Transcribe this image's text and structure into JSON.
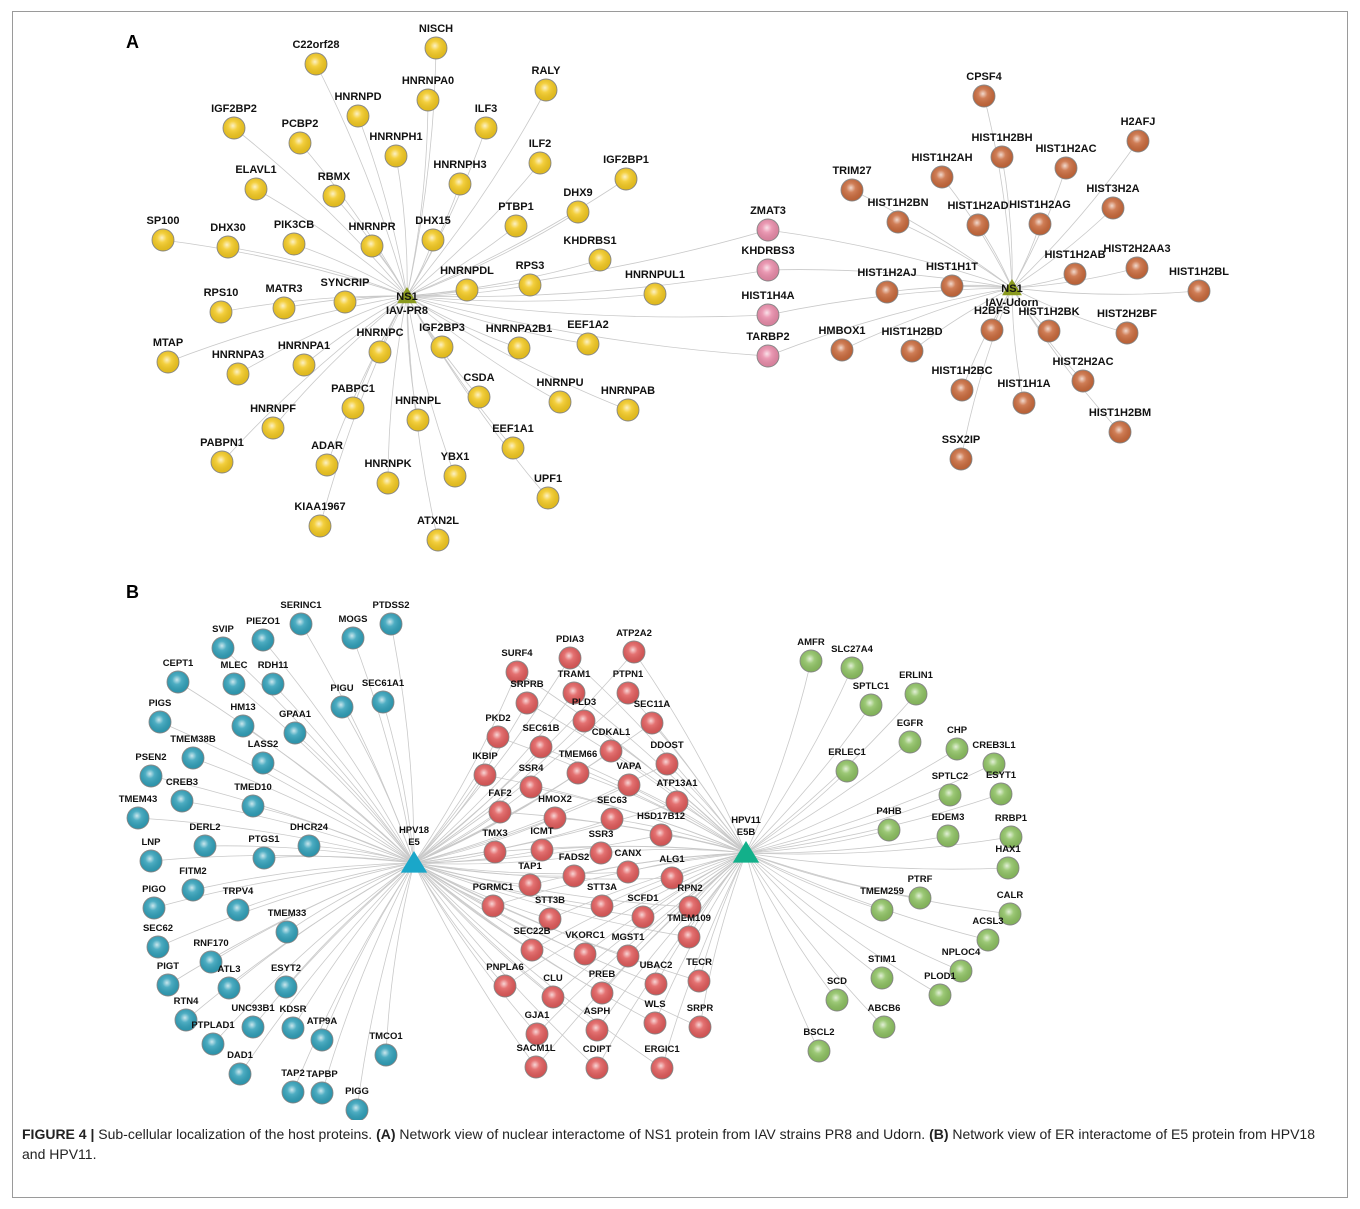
{
  "panels": [
    {
      "id": "A",
      "label": "A"
    },
    {
      "id": "B",
      "label": "B"
    }
  ],
  "colors": {
    "yellow": "#f2c81e",
    "pink": "#e88aa8",
    "brown": "#c8683a",
    "olive_hub": "#8a9a1e",
    "teal": "#2f9fb8",
    "red": "#e05a5a",
    "green": "#8cc060",
    "cyan_hub": "#1aa7c9",
    "teal_hub": "#12b08a",
    "edge": "#c9c9c9"
  },
  "panel_a": {
    "hubs": [
      {
        "id": "h_pr8",
        "lines": [
          "NS1",
          "IAV-PR8"
        ],
        "color": "olive_hub"
      },
      {
        "id": "h_udorn",
        "lines": [
          "NS1",
          "IAV-Udorn"
        ],
        "color": "olive_hub"
      }
    ],
    "groups": [
      {
        "color": "yellow",
        "hub": "h_pr8",
        "nodes": [
          "NISCH",
          "C22orf28",
          "RALY",
          "HNRNPA0",
          "HNRNPD",
          "IGF2BP2",
          "PCBP2",
          "ILF3",
          "HNRNPH1",
          "ILF2",
          "IGF2BP1",
          "ELAVL1",
          "RBMX",
          "HNRNPH3",
          "DHX9",
          "PTBP1",
          "SP100",
          "DHX30",
          "PIK3CB",
          "HNRNPR",
          "DHX15",
          "KHDRBS1",
          "RPS10",
          "MATR3",
          "SYNCRIP",
          "HNRNPDL",
          "RPS3",
          "HNRNPUL1",
          "MTAP",
          "HNRNPA3",
          "HNRNPA1",
          "HNRNPC",
          "IGF2BP3",
          "HNRNPA2B1",
          "EEF1A2",
          "HNRNPF",
          "PABPC1",
          "HNRNPL",
          "CSDA",
          "HNRNPU",
          "HNRNPAB",
          "PABPN1",
          "ADAR",
          "HNRNPK",
          "YBX1",
          "EEF1A1",
          "UPF1",
          "KIAA1967",
          "ATXN2L"
        ]
      },
      {
        "color": "pink",
        "hub": "both",
        "nodes": [
          "ZMAT3",
          "KHDRBS3",
          "HIST1H4A",
          "TARBP2"
        ]
      },
      {
        "color": "brown",
        "hub": "h_udorn",
        "nodes": [
          "CPSF4",
          "H2AFJ",
          "HIST1H2BH",
          "HIST1H2AC",
          "HIST1H2AH",
          "TRIM27",
          "HIST3H2A",
          "HIST1H2BN",
          "HIST1H2AD",
          "HIST1H2AG",
          "HIST2H2AA3",
          "HIST1H2AJ",
          "HIST1H1T",
          "HIST1H2AB",
          "HIST1H2BL",
          "H2BFS",
          "HIST1H2BK",
          "HIST2H2BF",
          "HMBOX1",
          "HIST1H2BD",
          "HIST2H2AC",
          "HIST1H2BC",
          "HIST1H1A",
          "HIST1H2BM",
          "SSX2IP"
        ]
      }
    ]
  },
  "panel_b": {
    "hubs": [
      {
        "id": "h_hpv18",
        "lines": [
          "HPV18",
          "E5"
        ],
        "color": "cyan_hub"
      },
      {
        "id": "h_hpv11",
        "lines": [
          "HPV11",
          "E5B"
        ],
        "color": "teal_hub"
      }
    ],
    "groups": [
      {
        "color": "teal",
        "hub": "h_hpv18",
        "nodes": [
          "SERINC1",
          "PTDSS2",
          "SVIP",
          "PIEZO1",
          "MOGS",
          "CEPT1",
          "MLEC",
          "RDH11",
          "SEC61A1",
          "PIGU",
          "PIGS",
          "HM13",
          "GPAA1",
          "PSEN2",
          "TMEM38B",
          "LASS2",
          "CREB3",
          "TMEM43",
          "TMED10",
          "DHCR24",
          "LNP",
          "DERL2",
          "PTGS1",
          "FITM2",
          "PIGO",
          "TRPV4",
          "TMEM33",
          "SEC62",
          "RNF170",
          "PIGT",
          "ATL3",
          "ESYT2",
          "RTN4",
          "UNC93B1",
          "KDSR",
          "ATP9A",
          "PTPLAD1",
          "TMCO1",
          "DAD1",
          "TAP2",
          "TAPBP",
          "PIGG"
        ]
      },
      {
        "color": "red",
        "hub": "both",
        "nodes": [
          "PDIA3",
          "ATP2A2",
          "SURF4",
          "TRAM1",
          "PTPN1",
          "SRPRB",
          "PLD3",
          "SEC11A",
          "PKD2",
          "SEC61B",
          "CDKAL1",
          "TMEM66",
          "DDOST",
          "IKBIP",
          "SSR4",
          "VAPA",
          "FAF2",
          "HMOX2",
          "SEC63",
          "ATP13A1",
          "TMX3",
          "ICMT",
          "SSR3",
          "HSD17B12",
          "TAP1",
          "FADS2",
          "CANX",
          "ALG1",
          "PGRMC1",
          "STT3A",
          "STT3B",
          "SCFD1",
          "RPN2",
          "SEC22B",
          "VKORC1",
          "MGST1",
          "TMEM109",
          "PNPLA6",
          "CLU",
          "PREB",
          "UBAC2",
          "TECR",
          "GJA1",
          "ASPH",
          "WLS",
          "SRPR",
          "SACM1L",
          "CDIPT",
          "ERGIC1"
        ]
      },
      {
        "color": "green",
        "hub": "h_hpv11",
        "nodes": [
          "AMFR",
          "SLC27A4",
          "SPTLC1",
          "ERLIN1",
          "EGFR",
          "CHP",
          "CREB3L1",
          "ERLEC1",
          "SPTLC2",
          "ESYT1",
          "P4HB",
          "EDEM3",
          "RRBP1",
          "HAX1",
          "TMEM259",
          "PTRF",
          "CALR",
          "ACSL3",
          "NPLOC4",
          "STIM1",
          "SCD",
          "PLOD1",
          "ABCB6",
          "BSCL2"
        ]
      }
    ]
  },
  "caption": {
    "lead": "FIGURE 4 |",
    "text1": " Sub-cellular localization of the host proteins. ",
    "bold_a": "(A)",
    "text2": " Network view of nuclear interactome of NS1 protein from IAV strains PR8 and Udorn. ",
    "bold_b": "(B)",
    "text3": " Network view of ER interactome of E5 protein from HPV18 and HPV11."
  }
}
